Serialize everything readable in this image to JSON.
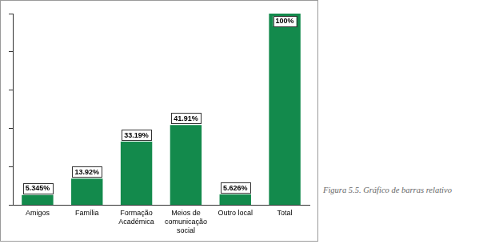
{
  "chart_data": {
    "type": "bar",
    "caption": "Figura 5.5. Gráfico de barras relativo",
    "categories": [
      "Amigos",
      "Família",
      "Formação Académica",
      "Meios de comunicação social",
      "Outro local",
      "Total"
    ],
    "values": [
      5.345,
      13.92,
      33.19,
      41.91,
      5.626,
      100
    ],
    "value_labels": [
      "5.345%",
      "13.92%",
      "33.19%",
      "41.91%",
      "5.626%",
      "100%"
    ],
    "color": "#138a4c",
    "ylim": [
      0,
      100
    ],
    "yticks": [
      0,
      20,
      40,
      60,
      80,
      100
    ],
    "grid": false,
    "data_labels": true,
    "tick_labels": "x"
  }
}
